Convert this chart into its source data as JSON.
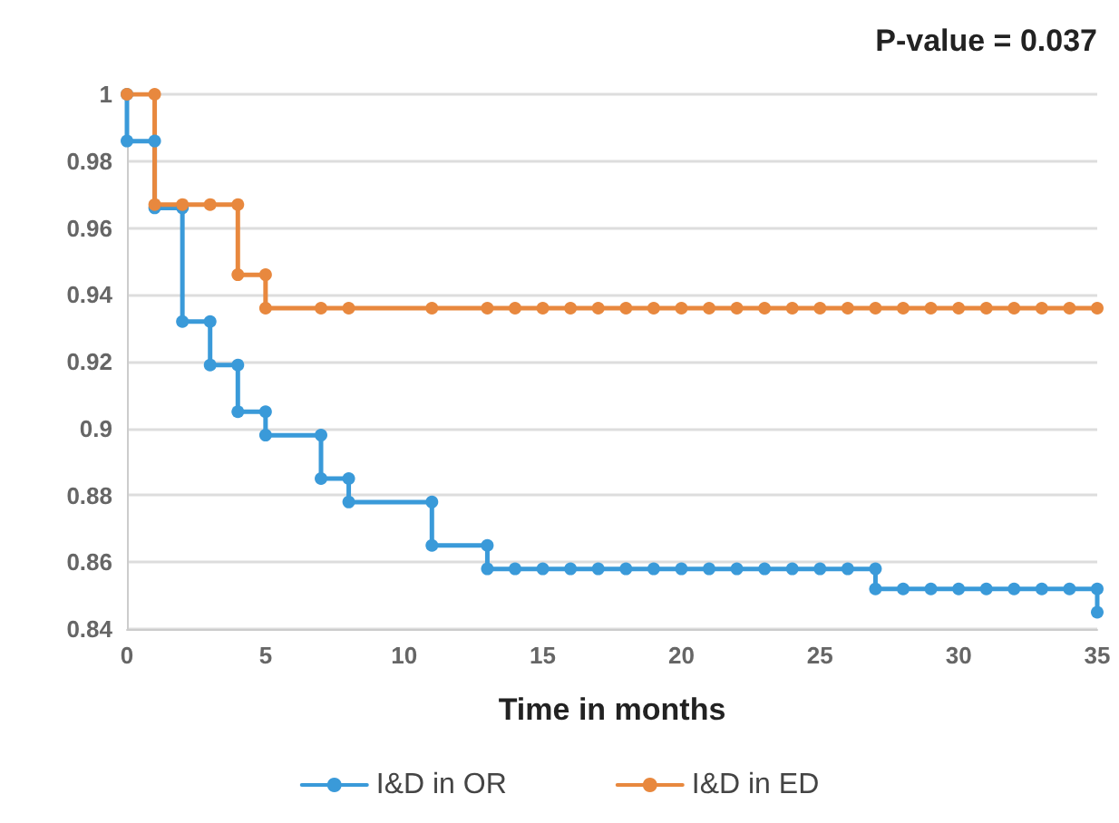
{
  "chart_data": {
    "type": "line",
    "xlabel": "Time in months",
    "annotations": [
      "P-value = 0.037"
    ],
    "series": [
      {
        "name": "I&D in OR",
        "color": "#3a9ad9",
        "x": [
          0,
          0,
          1,
          1,
          2,
          2,
          3,
          3,
          4,
          4,
          5,
          5,
          7,
          7,
          8,
          8,
          11,
          11,
          13,
          13,
          14,
          15,
          16,
          17,
          18,
          19,
          20,
          21,
          22,
          23,
          24,
          25,
          26,
          27,
          27,
          28,
          29,
          30,
          31,
          32,
          33,
          34,
          35,
          35
        ],
        "values": [
          1,
          0.986,
          0.986,
          0.966,
          0.966,
          0.932,
          0.932,
          0.919,
          0.919,
          0.905,
          0.905,
          0.898,
          0.898,
          0.885,
          0.885,
          0.878,
          0.878,
          0.865,
          0.865,
          0.858,
          0.858,
          0.858,
          0.858,
          0.858,
          0.858,
          0.858,
          0.858,
          0.858,
          0.858,
          0.858,
          0.858,
          0.858,
          0.858,
          0.858,
          0.852,
          0.852,
          0.852,
          0.852,
          0.852,
          0.852,
          0.852,
          0.852,
          0.852,
          0.845
        ]
      },
      {
        "name": "I&D in ED",
        "color": "#e8883e",
        "x": [
          0,
          1,
          1,
          2,
          3,
          4,
          4,
          5,
          5,
          7,
          8,
          11,
          13,
          14,
          15,
          16,
          17,
          18,
          19,
          20,
          21,
          22,
          23,
          24,
          25,
          26,
          27,
          28,
          29,
          30,
          31,
          32,
          33,
          34,
          35
        ],
        "values": [
          1,
          1,
          0.967,
          0.967,
          0.967,
          0.967,
          0.946,
          0.946,
          0.936,
          0.936,
          0.936,
          0.936,
          0.936,
          0.936,
          0.936,
          0.936,
          0.936,
          0.936,
          0.936,
          0.936,
          0.936,
          0.936,
          0.936,
          0.936,
          0.936,
          0.936,
          0.936,
          0.936,
          0.936,
          0.936,
          0.936,
          0.936,
          0.936,
          0.936,
          0.936
        ]
      }
    ],
    "xlim": [
      0,
      35
    ],
    "xticks": [
      0,
      5,
      10,
      15,
      20,
      25,
      30,
      35
    ],
    "ylim": [
      0.84,
      1
    ],
    "yticks": [
      0.84,
      0.86,
      0.88,
      0.9,
      0.92,
      0.94,
      0.96,
      0.98,
      1
    ],
    "grid": "y",
    "legend": "bottom",
    "marker": "circle",
    "line_style": "solid"
  }
}
